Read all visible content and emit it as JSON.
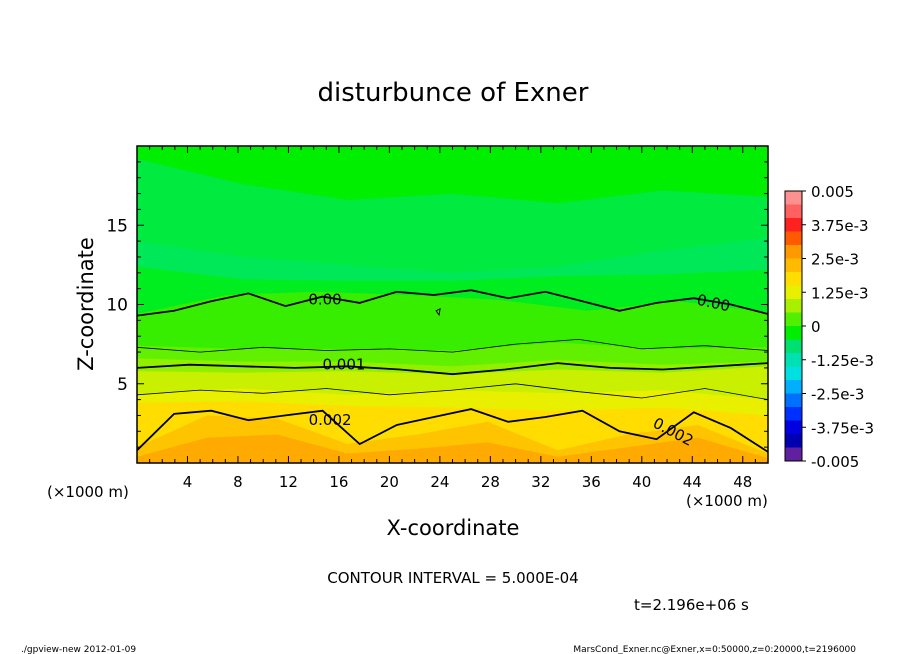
{
  "chart_data": {
    "type": "heatmap",
    "title": "disturbunce of Exner",
    "xlabel": "X-coordinate",
    "ylabel": "Z-coordinate",
    "x_unit_left": "(×1000 m)",
    "x_unit_right": "(×1000 m)",
    "xlim": [
      0,
      50
    ],
    "ylim": [
      0,
      20
    ],
    "x_ticks": [
      4,
      8,
      12,
      16,
      20,
      24,
      28,
      32,
      36,
      40,
      44,
      48
    ],
    "y_ticks": [
      5,
      10,
      15
    ],
    "colorbar": {
      "labels": [
        "0.005",
        "3.75e-3",
        "2.5e-3",
        "1.25e-3",
        "0",
        "-1.25e-3",
        "-2.5e-3",
        "-3.75e-3",
        "-0.005"
      ],
      "label_values": [
        0.005,
        0.00375,
        0.0025,
        0.00125,
        0,
        -0.00125,
        -0.0025,
        -0.00375,
        -0.005
      ],
      "levels": [
        {
          "lo": 0.0045,
          "hi": 0.005,
          "color": "#ff9090"
        },
        {
          "lo": 0.004,
          "hi": 0.0045,
          "color": "#ff6060"
        },
        {
          "lo": 0.0035,
          "hi": 0.004,
          "color": "#ff2020"
        },
        {
          "lo": 0.003,
          "hi": 0.0035,
          "color": "#ff5a00"
        },
        {
          "lo": 0.0025,
          "hi": 0.003,
          "color": "#ff9900"
        },
        {
          "lo": 0.002,
          "hi": 0.0025,
          "color": "#ffbb00"
        },
        {
          "lo": 0.0015,
          "hi": 0.002,
          "color": "#ffdd00"
        },
        {
          "lo": 0.001,
          "hi": 0.0015,
          "color": "#e6f000"
        },
        {
          "lo": 0.0005,
          "hi": 0.001,
          "color": "#a8f000"
        },
        {
          "lo": 0.0,
          "hi": 0.0005,
          "color": "#50f000"
        },
        {
          "lo": -0.0005,
          "hi": 0.0,
          "color": "#00ee00"
        },
        {
          "lo": -0.001,
          "hi": -0.0005,
          "color": "#00e070"
        },
        {
          "lo": -0.0015,
          "hi": -0.001,
          "color": "#00e0b0"
        },
        {
          "lo": -0.002,
          "hi": -0.0015,
          "color": "#00e0e0"
        },
        {
          "lo": -0.0025,
          "hi": -0.002,
          "color": "#00b0ff"
        },
        {
          "lo": -0.003,
          "hi": -0.0025,
          "color": "#0070ff"
        },
        {
          "lo": -0.0035,
          "hi": -0.003,
          "color": "#0030ff"
        },
        {
          "lo": -0.004,
          "hi": -0.0035,
          "color": "#0000e0"
        },
        {
          "lo": -0.0045,
          "hi": -0.004,
          "color": "#0000b0"
        },
        {
          "lo": -0.005,
          "hi": -0.0045,
          "color": "#6020a0"
        }
      ]
    },
    "contour_interval": 0.0005,
    "bands": [
      {
        "value": -0.00075,
        "color": "#00ea40",
        "z": [
          19.2,
          17.6,
          16.6,
          17.0,
          16.4,
          17.2,
          16.8
        ]
      },
      {
        "value": -0.00055,
        "color": "#00e858",
        "z": [
          14.0,
          13.0,
          12.5,
          12.0,
          12.4,
          13.4,
          14.2
        ]
      },
      {
        "value": -0.0004,
        "color": "#00ee20",
        "z": [
          12.4,
          11.6,
          11.5,
          11.5,
          11.8,
          11.9,
          12.2
        ]
      },
      {
        "value": 0.00025,
        "color": "#38ee00",
        "z": [
          9.4,
          10.6,
          10.8,
          10.6,
          10.3,
          9.6,
          10.2,
          9.5
        ]
      },
      {
        "value": 0.00045,
        "color": "#60f000",
        "z": [
          7.4,
          7.2,
          7.2,
          7.1,
          7.6,
          7.2,
          7.3
        ]
      },
      {
        "value": 0.0008,
        "color": "#90f000",
        "z": [
          6.6,
          6.4,
          6.4,
          6.1,
          6.5,
          6.2,
          6.4
        ]
      },
      {
        "value": 0.00115,
        "color": "#c8f000",
        "z": [
          5.8,
          5.7,
          5.8,
          5.6,
          5.9,
          5.7,
          6.1
        ]
      },
      {
        "value": 0.0014,
        "color": "#e8f000",
        "z": [
          4.4,
          4.7,
          4.3,
          4.6,
          4.4,
          4.6,
          4.0
        ]
      },
      {
        "value": 0.0018,
        "color": "#ffdd00",
        "z": [
          3.8,
          3.9,
          3.6,
          3.5,
          3.3,
          3.5,
          3.0
        ]
      },
      {
        "value": 0.0022,
        "color": "#ffc400",
        "z": [
          1.0,
          3.0,
          2.8,
          1.2,
          1.8,
          2.6,
          0.8,
          1.8,
          2.4,
          0.6
        ]
      },
      {
        "value": 0.0026,
        "color": "#ffaa00",
        "z": [
          0.4,
          1.6,
          1.8,
          0.6,
          0.9,
          1.3,
          0.4,
          1.0,
          1.6,
          0.3
        ]
      }
    ],
    "contours": [
      {
        "label": "0.00",
        "value": 0.0,
        "z": [
          9.3,
          9.6,
          10.2,
          10.7,
          9.9,
          10.5,
          10.1,
          10.8,
          10.6,
          10.9,
          10.4,
          10.8,
          10.2,
          9.6,
          10.1,
          10.4,
          10.0,
          9.4
        ]
      },
      {
        "label": "0.001",
        "value": 0.001,
        "z": [
          6.0,
          6.2,
          6.1,
          6.0,
          6.1,
          5.9,
          5.6,
          5.9,
          6.3,
          6.0,
          5.9,
          6.1,
          6.3
        ]
      },
      {
        "label": "0.002",
        "value": 0.002,
        "z": [
          0.8,
          3.1,
          3.3,
          2.7,
          3.0,
          3.3,
          1.2,
          2.4,
          2.9,
          3.4,
          2.6,
          2.9,
          3.3,
          2.0,
          1.5,
          3.2,
          2.2,
          0.7
        ]
      },
      {
        "label": "",
        "value": 0.0005,
        "z": [
          7.3,
          7.0,
          7.3,
          7.1,
          7.2,
          7.0,
          7.5,
          7.8,
          7.2,
          7.4,
          7.1
        ]
      },
      {
        "label": "",
        "value": 0.0015,
        "z": [
          4.3,
          4.6,
          4.4,
          4.7,
          4.3,
          4.6,
          5.0,
          4.5,
          4.1,
          4.7,
          4.0
        ]
      }
    ],
    "contour_labels": [
      {
        "text": "0.00",
        "x": 14.9,
        "z": 10.3
      },
      {
        "text": "0.00",
        "x": 45.6,
        "z": 10.1
      },
      {
        "text": "0.001",
        "x": 16.4,
        "z": 6.2
      },
      {
        "text": "0.002",
        "x": 15.3,
        "z": 2.7
      },
      {
        "text": "0.002",
        "x": 42.3,
        "z": 2.0
      }
    ]
  },
  "texts": {
    "contour_interval": "CONTOUR INTERVAL = 5.000E-04",
    "time": "t=2.196e+06 s",
    "footer_left": "./gpview-new  2012-01-09",
    "footer_right": "MarsCond_Exner.nc@Exner,x=0:50000,z=0:20000,t=2196000"
  }
}
